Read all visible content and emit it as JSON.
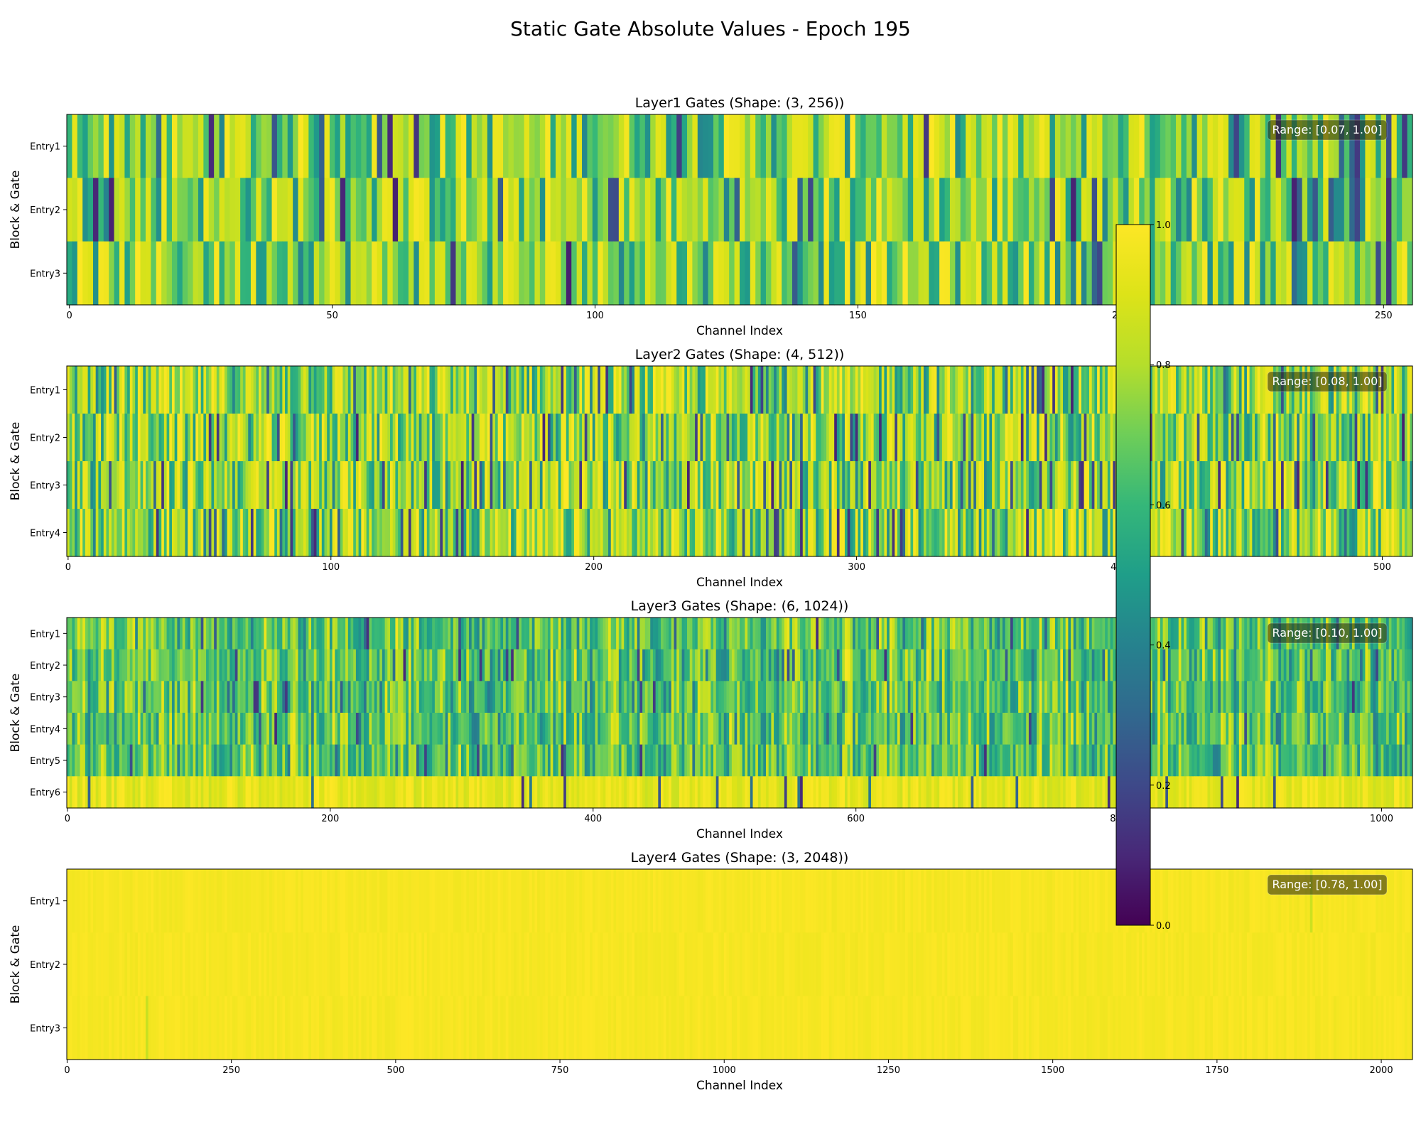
{
  "chart_data": {
    "type": "heatmap",
    "title": "Static Gate Absolute Values - Epoch 195",
    "colormap": "viridis",
    "colorbar": {
      "range": [
        0.0,
        1.0
      ],
      "ticks": [
        "0.0",
        "0.2",
        "0.4",
        "0.6",
        "0.8",
        "1.0"
      ]
    },
    "panels": [
      {
        "title": "Layer1 Gates (Shape: (3, 256))",
        "xlabel": "Channel Index",
        "ylabel": "Block & Gate",
        "rows": [
          "Entry1",
          "Entry2",
          "Entry3"
        ],
        "columns": 256,
        "xticks": [
          "0",
          "50",
          "100",
          "150",
          "200",
          "250"
        ],
        "range_label": "Range: [0.07, 1.00]",
        "value_range": [
          0.07,
          1.0
        ],
        "texture": "coarse"
      },
      {
        "title": "Layer2 Gates (Shape: (4, 512))",
        "xlabel": "Channel Index",
        "ylabel": "Block & Gate",
        "rows": [
          "Entry1",
          "Entry2",
          "Entry3",
          "Entry4"
        ],
        "columns": 512,
        "xticks": [
          "0",
          "100",
          "200",
          "300",
          "400",
          "500"
        ],
        "range_label": "Range: [0.08, 1.00]",
        "value_range": [
          0.08,
          1.0
        ],
        "texture": "coarse"
      },
      {
        "title": "Layer3 Gates (Shape: (6, 1024))",
        "xlabel": "Channel Index",
        "ylabel": "Block & Gate",
        "rows": [
          "Entry1",
          "Entry2",
          "Entry3",
          "Entry4",
          "Entry5",
          "Entry6"
        ],
        "columns": 1024,
        "xticks": [
          "0",
          "200",
          "400",
          "600",
          "800",
          "1000"
        ],
        "range_label": "Range: [0.10, 1.00]",
        "value_range": [
          0.1,
          1.0
        ],
        "texture": "smooth"
      },
      {
        "title": "Layer4 Gates (Shape: (3, 2048))",
        "xlabel": "Channel Index",
        "ylabel": "Block & Gate",
        "rows": [
          "Entry1",
          "Entry2",
          "Entry3"
        ],
        "columns": 2048,
        "xticks": [
          "0",
          "250",
          "500",
          "750",
          "1000",
          "1250",
          "1500",
          "1750",
          "2000"
        ],
        "range_label": "Range: [0.78, 1.00]",
        "value_range": [
          0.78,
          1.0
        ],
        "texture": "uniform-high"
      }
    ]
  }
}
